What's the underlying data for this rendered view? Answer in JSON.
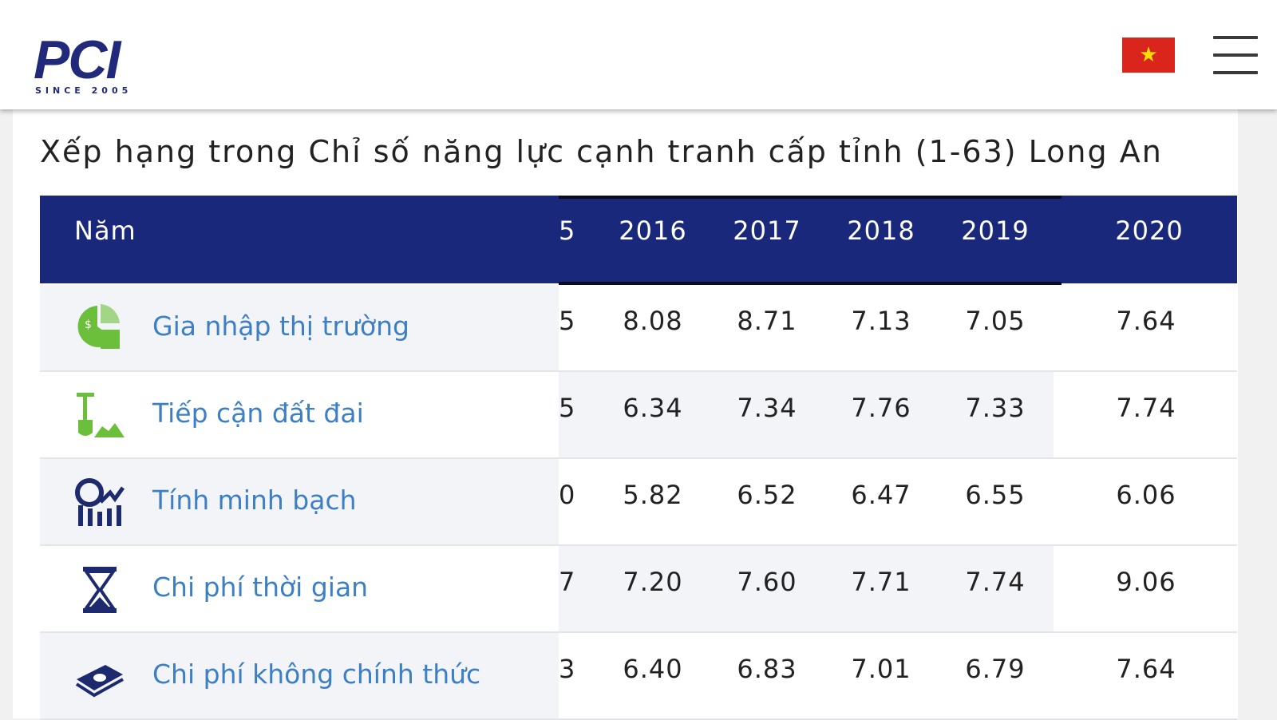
{
  "header": {
    "logo_text": "PCI",
    "logo_subtext": "SINCE 2005",
    "language_flag": "vietnam-flag",
    "menu_icon": "hamburger-menu-icon"
  },
  "page": {
    "title": "Xếp hạng trong Chỉ số năng lực cạnh tranh cấp tỉnh (1-63) Long An"
  },
  "table": {
    "header_label": "Năm",
    "partial_year_glyph": "5",
    "years": [
      "2016",
      "2017",
      "2018",
      "2019",
      "2020"
    ],
    "rows": [
      {
        "label": "Gia nhập thị trường",
        "icon": "market-entry-icon",
        "partial_glyph": "5",
        "values": [
          "8.08",
          "8.71",
          "7.13",
          "7.05",
          "7.64"
        ]
      },
      {
        "label": "Tiếp cận đất đai",
        "icon": "land-access-icon",
        "partial_glyph": "5",
        "values": [
          "6.34",
          "7.34",
          "7.76",
          "7.33",
          "7.74"
        ]
      },
      {
        "label": "Tính minh bạch",
        "icon": "transparency-icon",
        "partial_glyph": "0",
        "values": [
          "5.82",
          "6.52",
          "6.47",
          "6.55",
          "6.06"
        ]
      },
      {
        "label": "Chi phí thời gian",
        "icon": "hourglass-icon",
        "partial_glyph": "7",
        "values": [
          "7.20",
          "7.60",
          "7.71",
          "7.74",
          "9.06"
        ]
      },
      {
        "label": "Chi phí không chính thức",
        "icon": "money-bill-icon",
        "partial_glyph": "3",
        "values": [
          "6.40",
          "6.83",
          "7.01",
          "6.79",
          "7.64"
        ]
      }
    ]
  },
  "colors": {
    "header_bg": "#19287a",
    "link": "#3d7fc4",
    "icon_green": "#6cbf3a",
    "icon_navy": "#1d2b6e",
    "flag_red": "#da251d",
    "flag_star": "#ffde00"
  }
}
